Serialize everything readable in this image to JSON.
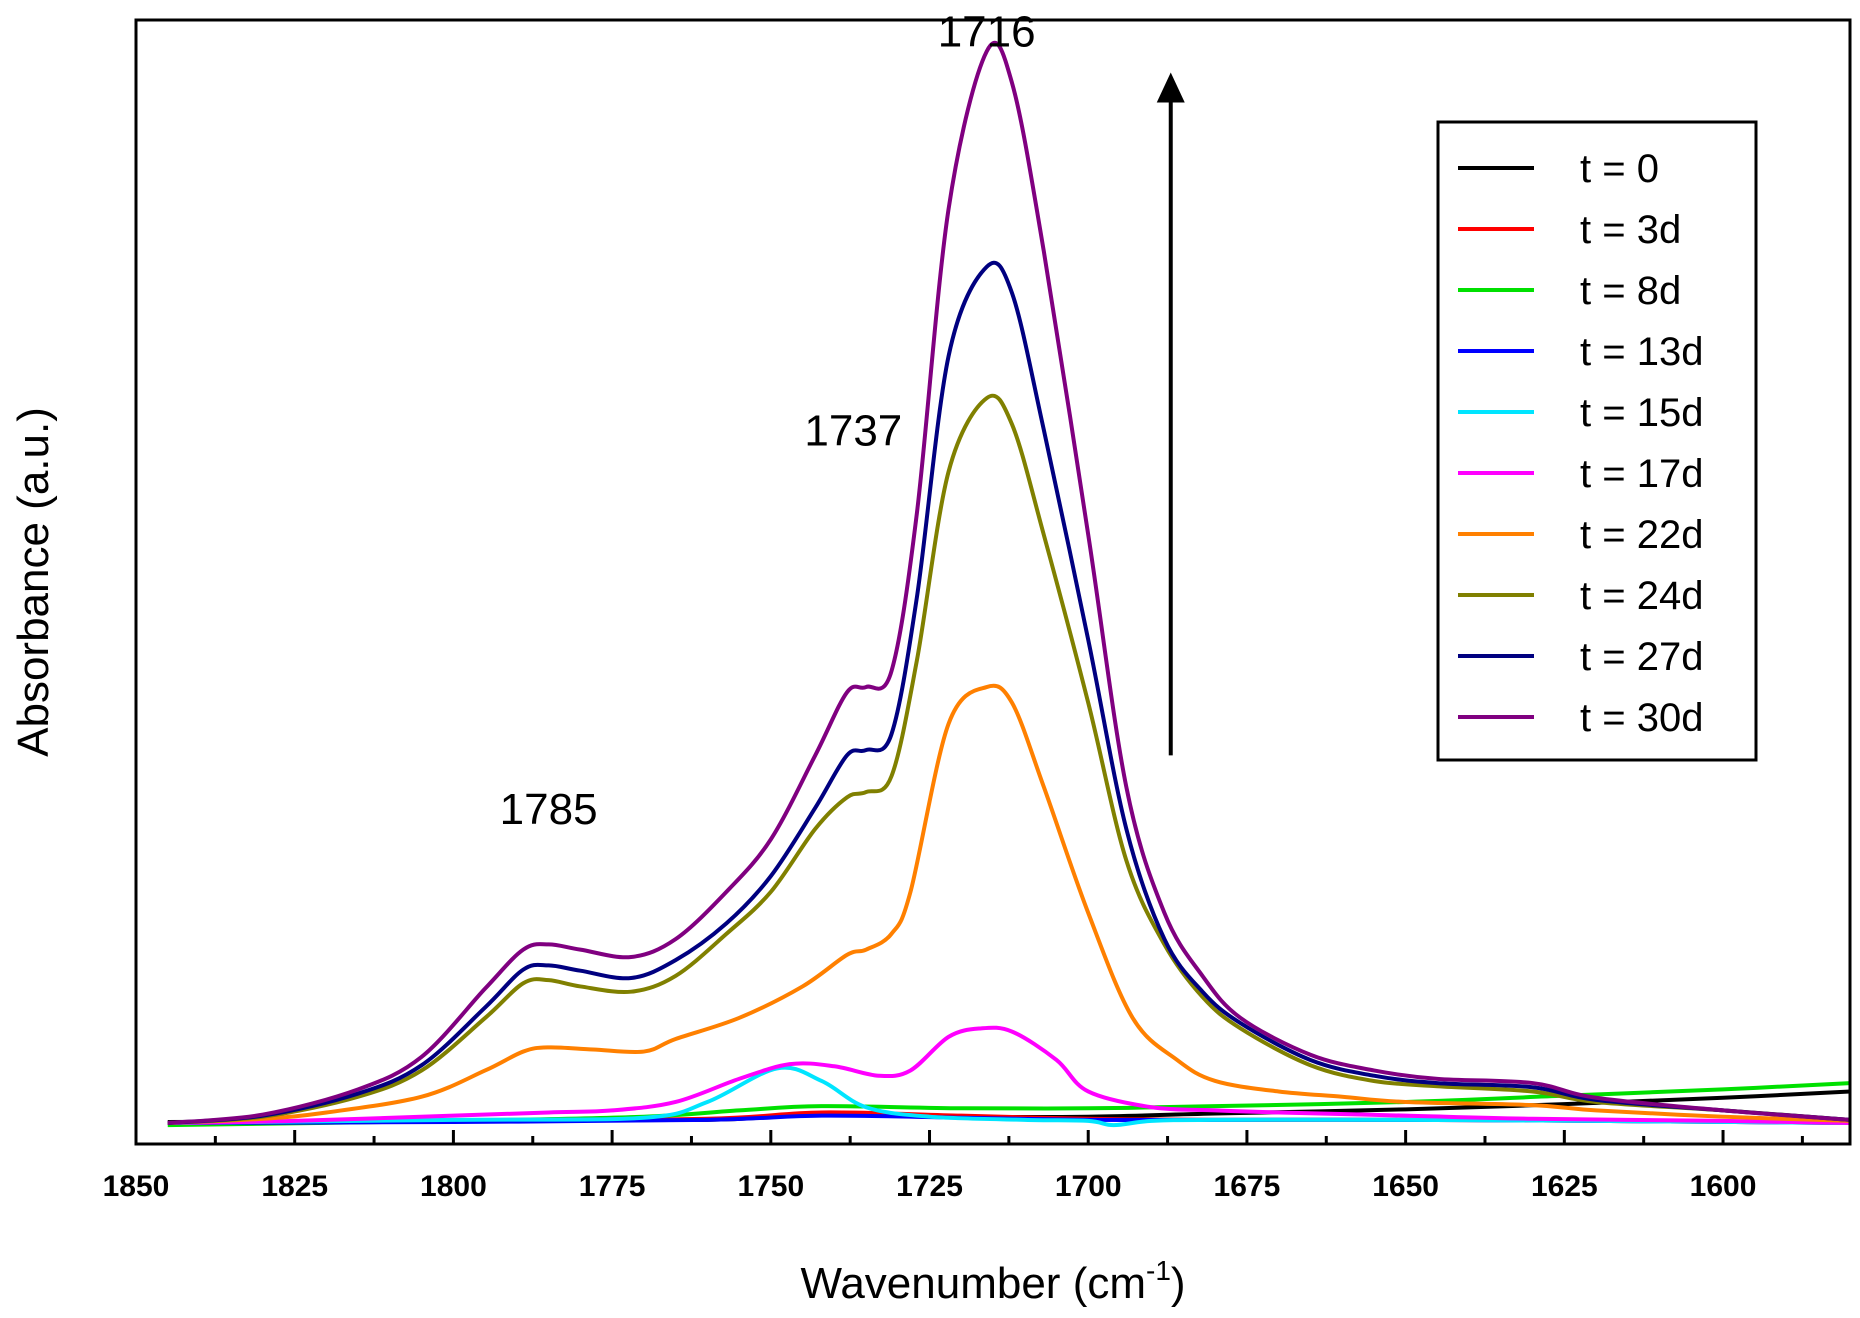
{
  "chart_data": {
    "type": "line",
    "title": "",
    "xlabel": "Wavenumber (cm",
    "xlabel_sup": "-1",
    "xlabel_close": ")",
    "ylabel": "Absorbance (a.u.)",
    "xlim": [
      1850,
      1580
    ],
    "ylim": [
      -0.02,
      1.05
    ],
    "x_ticks": [
      1850,
      1825,
      1800,
      1775,
      1750,
      1725,
      1700,
      1675,
      1650,
      1625,
      1600
    ],
    "annotations": [
      {
        "text": "1716",
        "x": 1716,
        "y": 1.04
      },
      {
        "text": "1737",
        "x": 1737,
        "y": 0.66
      },
      {
        "text": "1785",
        "x": 1785,
        "y": 0.3
      }
    ],
    "arrow": {
      "x": 1687,
      "y_from": 0.35,
      "y_to": 1.0,
      "direction": "up"
    },
    "legend_position": "top-right",
    "series": [
      {
        "name": "t = 0",
        "color": "#000000",
        "points": [
          [
            1845,
            0.001
          ],
          [
            1800,
            0.002
          ],
          [
            1760,
            0.003
          ],
          [
            1742,
            0.008
          ],
          [
            1720,
            0.006
          ],
          [
            1700,
            0.006
          ],
          [
            1680,
            0.009
          ],
          [
            1650,
            0.013
          ],
          [
            1625,
            0.018
          ],
          [
            1600,
            0.024
          ],
          [
            1580,
            0.03
          ]
        ]
      },
      {
        "name": "t = 3d",
        "color": "#ff0000",
        "points": [
          [
            1845,
            0.0
          ],
          [
            1800,
            0.002
          ],
          [
            1760,
            0.004
          ],
          [
            1742,
            0.01
          ],
          [
            1720,
            0.007
          ],
          [
            1700,
            0.004
          ],
          [
            1680,
            0.003
          ],
          [
            1650,
            0.003
          ],
          [
            1620,
            0.002
          ],
          [
            1580,
            0.0
          ]
        ]
      },
      {
        "name": "t = 8d",
        "color": "#00e000",
        "points": [
          [
            1845,
            -0.002
          ],
          [
            1800,
            0.002
          ],
          [
            1770,
            0.006
          ],
          [
            1755,
            0.012
          ],
          [
            1742,
            0.016
          ],
          [
            1720,
            0.014
          ],
          [
            1700,
            0.014
          ],
          [
            1680,
            0.016
          ],
          [
            1650,
            0.02
          ],
          [
            1625,
            0.026
          ],
          [
            1600,
            0.032
          ],
          [
            1580,
            0.038
          ]
        ]
      },
      {
        "name": "t = 13d",
        "color": "#0000ff",
        "points": [
          [
            1845,
            0.0
          ],
          [
            1800,
            0.001
          ],
          [
            1760,
            0.003
          ],
          [
            1742,
            0.007
          ],
          [
            1720,
            0.005
          ],
          [
            1700,
            0.003
          ],
          [
            1680,
            0.003
          ],
          [
            1650,
            0.003
          ],
          [
            1620,
            0.002
          ],
          [
            1580,
            0.0
          ]
        ]
      },
      {
        "name": "t = 15d",
        "color": "#00e5ff",
        "points": [
          [
            1845,
            0.0
          ],
          [
            1800,
            0.003
          ],
          [
            1770,
            0.005
          ],
          [
            1760,
            0.02
          ],
          [
            1749,
            0.052
          ],
          [
            1742,
            0.04
          ],
          [
            1735,
            0.015
          ],
          [
            1725,
            0.006
          ],
          [
            1710,
            0.003
          ],
          [
            1700,
            0.002
          ],
          [
            1696,
            -0.002
          ],
          [
            1690,
            0.002
          ],
          [
            1680,
            0.003
          ],
          [
            1650,
            0.003
          ],
          [
            1620,
            0.002
          ],
          [
            1580,
            0.0
          ]
        ]
      },
      {
        "name": "t = 17d",
        "color": "#ff00ff",
        "points": [
          [
            1845,
            0.0
          ],
          [
            1825,
            0.002
          ],
          [
            1800,
            0.007
          ],
          [
            1785,
            0.01
          ],
          [
            1775,
            0.012
          ],
          [
            1765,
            0.02
          ],
          [
            1755,
            0.042
          ],
          [
            1747,
            0.056
          ],
          [
            1740,
            0.054
          ],
          [
            1733,
            0.045
          ],
          [
            1728,
            0.05
          ],
          [
            1722,
            0.082
          ],
          [
            1717,
            0.09
          ],
          [
            1712,
            0.087
          ],
          [
            1705,
            0.06
          ],
          [
            1700,
            0.03
          ],
          [
            1690,
            0.015
          ],
          [
            1680,
            0.012
          ],
          [
            1670,
            0.01
          ],
          [
            1650,
            0.007
          ],
          [
            1630,
            0.004
          ],
          [
            1600,
            0.002
          ],
          [
            1580,
            0.0
          ]
        ]
      },
      {
        "name": "t = 22d",
        "color": "#ff8000",
        "points": [
          [
            1845,
            0.0
          ],
          [
            1830,
            0.004
          ],
          [
            1820,
            0.01
          ],
          [
            1805,
            0.025
          ],
          [
            1795,
            0.05
          ],
          [
            1789,
            0.068
          ],
          [
            1785,
            0.072
          ],
          [
            1778,
            0.07
          ],
          [
            1770,
            0.068
          ],
          [
            1765,
            0.08
          ],
          [
            1755,
            0.1
          ],
          [
            1745,
            0.13
          ],
          [
            1738,
            0.16
          ],
          [
            1735,
            0.165
          ],
          [
            1731,
            0.18
          ],
          [
            1728,
            0.22
          ],
          [
            1722,
            0.38
          ],
          [
            1716,
            0.415
          ],
          [
            1712,
            0.4
          ],
          [
            1707,
            0.32
          ],
          [
            1700,
            0.2
          ],
          [
            1693,
            0.1
          ],
          [
            1686,
            0.06
          ],
          [
            1680,
            0.04
          ],
          [
            1670,
            0.03
          ],
          [
            1660,
            0.025
          ],
          [
            1650,
            0.02
          ],
          [
            1630,
            0.017
          ],
          [
            1620,
            0.012
          ],
          [
            1600,
            0.006
          ],
          [
            1580,
            0.002
          ]
        ]
      },
      {
        "name": "t = 24d",
        "color": "#808000",
        "points": [
          [
            1845,
            0.0
          ],
          [
            1830,
            0.006
          ],
          [
            1815,
            0.025
          ],
          [
            1805,
            0.05
          ],
          [
            1795,
            0.1
          ],
          [
            1789,
            0.133
          ],
          [
            1785,
            0.136
          ],
          [
            1780,
            0.13
          ],
          [
            1772,
            0.125
          ],
          [
            1765,
            0.14
          ],
          [
            1757,
            0.18
          ],
          [
            1750,
            0.22
          ],
          [
            1743,
            0.28
          ],
          [
            1738,
            0.31
          ],
          [
            1735,
            0.315
          ],
          [
            1731,
            0.33
          ],
          [
            1727,
            0.44
          ],
          [
            1722,
            0.62
          ],
          [
            1716,
            0.69
          ],
          [
            1712,
            0.665
          ],
          [
            1707,
            0.56
          ],
          [
            1700,
            0.4
          ],
          [
            1694,
            0.25
          ],
          [
            1688,
            0.17
          ],
          [
            1682,
            0.12
          ],
          [
            1676,
            0.09
          ],
          [
            1665,
            0.055
          ],
          [
            1655,
            0.04
          ],
          [
            1645,
            0.035
          ],
          [
            1630,
            0.03
          ],
          [
            1620,
            0.02
          ],
          [
            1600,
            0.012
          ],
          [
            1580,
            0.003
          ]
        ]
      },
      {
        "name": "t = 27d",
        "color": "#000080",
        "points": [
          [
            1845,
            0.0
          ],
          [
            1830,
            0.007
          ],
          [
            1815,
            0.028
          ],
          [
            1805,
            0.055
          ],
          [
            1795,
            0.11
          ],
          [
            1789,
            0.146
          ],
          [
            1785,
            0.15
          ],
          [
            1780,
            0.145
          ],
          [
            1772,
            0.138
          ],
          [
            1765,
            0.155
          ],
          [
            1757,
            0.19
          ],
          [
            1750,
            0.235
          ],
          [
            1743,
            0.3
          ],
          [
            1738,
            0.35
          ],
          [
            1735,
            0.355
          ],
          [
            1731,
            0.37
          ],
          [
            1727,
            0.5
          ],
          [
            1722,
            0.73
          ],
          [
            1716,
            0.815
          ],
          [
            1712,
            0.79
          ],
          [
            1707,
            0.66
          ],
          [
            1700,
            0.46
          ],
          [
            1694,
            0.28
          ],
          [
            1688,
            0.175
          ],
          [
            1682,
            0.125
          ],
          [
            1676,
            0.095
          ],
          [
            1665,
            0.06
          ],
          [
            1655,
            0.045
          ],
          [
            1645,
            0.038
          ],
          [
            1630,
            0.034
          ],
          [
            1620,
            0.022
          ],
          [
            1600,
            0.012
          ],
          [
            1580,
            0.003
          ]
        ]
      },
      {
        "name": "t = 30d",
        "color": "#800080",
        "points": [
          [
            1845,
            0.0
          ],
          [
            1830,
            0.008
          ],
          [
            1815,
            0.032
          ],
          [
            1805,
            0.063
          ],
          [
            1795,
            0.128
          ],
          [
            1789,
            0.165
          ],
          [
            1785,
            0.17
          ],
          [
            1780,
            0.165
          ],
          [
            1772,
            0.158
          ],
          [
            1765,
            0.175
          ],
          [
            1757,
            0.22
          ],
          [
            1750,
            0.27
          ],
          [
            1743,
            0.35
          ],
          [
            1738,
            0.41
          ],
          [
            1735,
            0.415
          ],
          [
            1731,
            0.43
          ],
          [
            1727,
            0.58
          ],
          [
            1722,
            0.87
          ],
          [
            1716,
            1.02
          ],
          [
            1712,
            0.99
          ],
          [
            1707,
            0.83
          ],
          [
            1700,
            0.56
          ],
          [
            1694,
            0.32
          ],
          [
            1688,
            0.2
          ],
          [
            1682,
            0.14
          ],
          [
            1676,
            0.1
          ],
          [
            1665,
            0.065
          ],
          [
            1655,
            0.05
          ],
          [
            1645,
            0.042
          ],
          [
            1630,
            0.038
          ],
          [
            1620,
            0.024
          ],
          [
            1600,
            0.012
          ],
          [
            1580,
            0.003
          ]
        ]
      }
    ]
  }
}
